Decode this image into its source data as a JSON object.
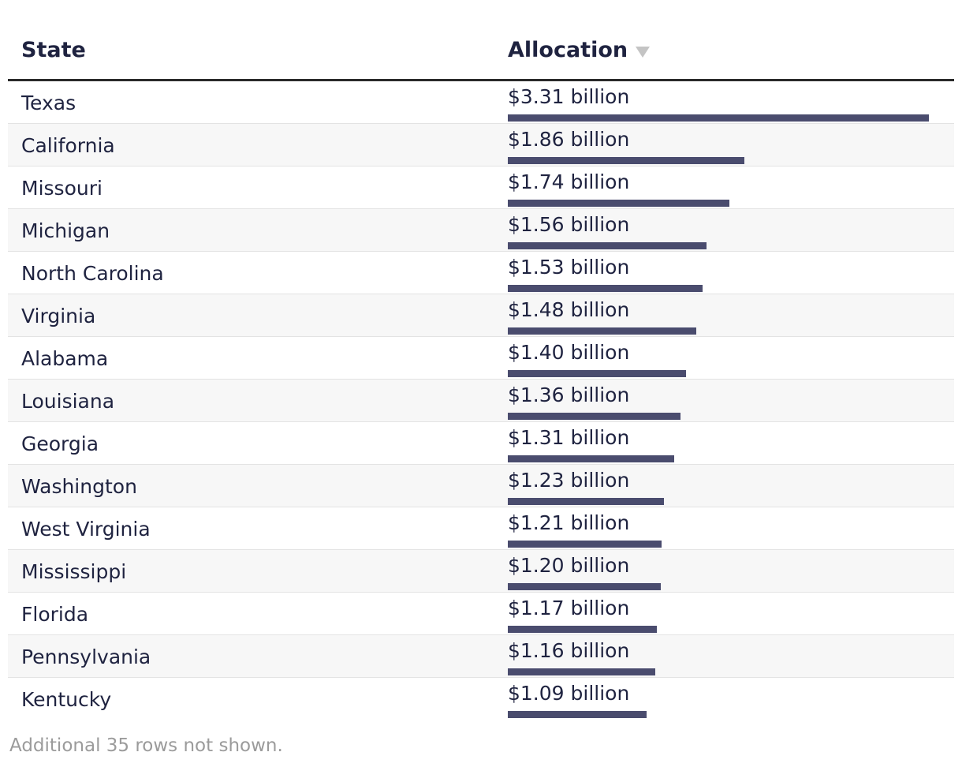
{
  "header": {
    "state_label": "State",
    "allocation_label": "Allocation",
    "sort_icon": "triangle-down-icon"
  },
  "footnote": "Additional 35 rows not shown.",
  "colors": {
    "bar": "#4a4c6e",
    "text": "#1f2340",
    "muted": "#9b9b9b"
  },
  "chart_data": {
    "type": "table",
    "title": "",
    "columns": [
      "State",
      "Allocation"
    ],
    "unit": "billion USD",
    "xlim": [
      0,
      3.31
    ],
    "categories": [
      "Texas",
      "California",
      "Missouri",
      "Michigan",
      "North Carolina",
      "Virginia",
      "Alabama",
      "Louisiana",
      "Georgia",
      "Washington",
      "West Virginia",
      "Mississippi",
      "Florida",
      "Pennsylvania",
      "Kentucky"
    ],
    "values": [
      3.31,
      1.86,
      1.74,
      1.56,
      1.53,
      1.48,
      1.4,
      1.36,
      1.31,
      1.23,
      1.21,
      1.2,
      1.17,
      1.16,
      1.09
    ],
    "labels": [
      "$3.31 billion",
      "$1.86 billion",
      "$1.74 billion",
      "$1.56 billion",
      "$1.53 billion",
      "$1.48 billion",
      "$1.40 billion",
      "$1.36 billion",
      "$1.31 billion",
      "$1.23 billion",
      "$1.21 billion",
      "$1.20 billion",
      "$1.17 billion",
      "$1.16 billion",
      "$1.09 billion"
    ]
  }
}
